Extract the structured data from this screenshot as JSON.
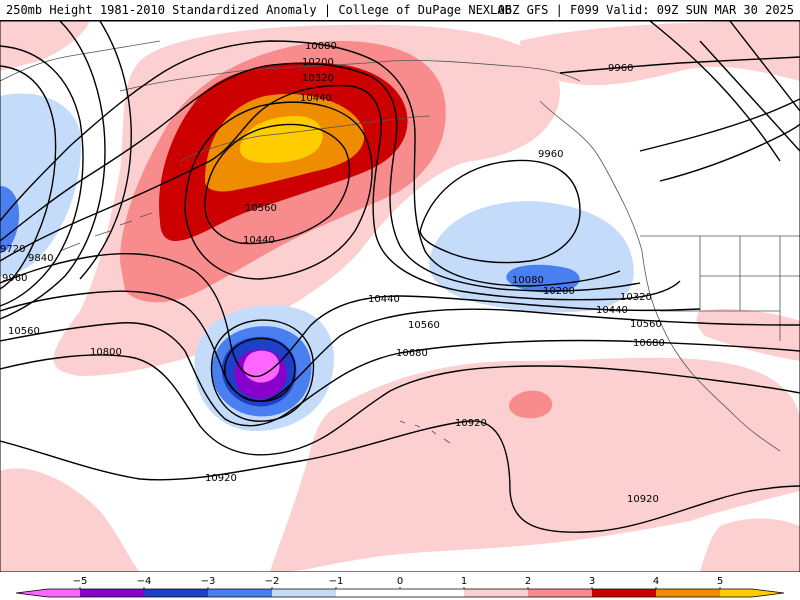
{
  "header": {
    "left": "250mb Height 1981-2010 Standardized Anomaly | College of DuPage NEXLAB",
    "right": "06Z GFS | F099 Valid: 09Z SUN MAR 30 2025"
  },
  "colors": {
    "neg5": "#ff66ff",
    "neg4": "#8800cc",
    "neg3": "#1e40c8",
    "neg2": "#4a7ff0",
    "neg1": "#c4dcfa",
    "pos1": "#fcd0d0",
    "pos2": "#f88c8c",
    "pos3": "#cc0000",
    "pos4": "#f08c00",
    "pos5": "#ffcc00"
  },
  "contour_labels": [
    "10080",
    "10200",
    "10320",
    "10440",
    "10560",
    "10440",
    "9960",
    "9960",
    "9840",
    "9720",
    "9960",
    "10560",
    "10800",
    "10440",
    "10560",
    "10680",
    "10080",
    "10200",
    "10320",
    "10440",
    "10560",
    "10680",
    "10920",
    "10920",
    "10920"
  ],
  "colorbar": {
    "ticks": [
      "−5",
      "−4",
      "−3",
      "−2",
      "−1",
      "0",
      "1",
      "2",
      "3",
      "4",
      "5"
    ]
  }
}
